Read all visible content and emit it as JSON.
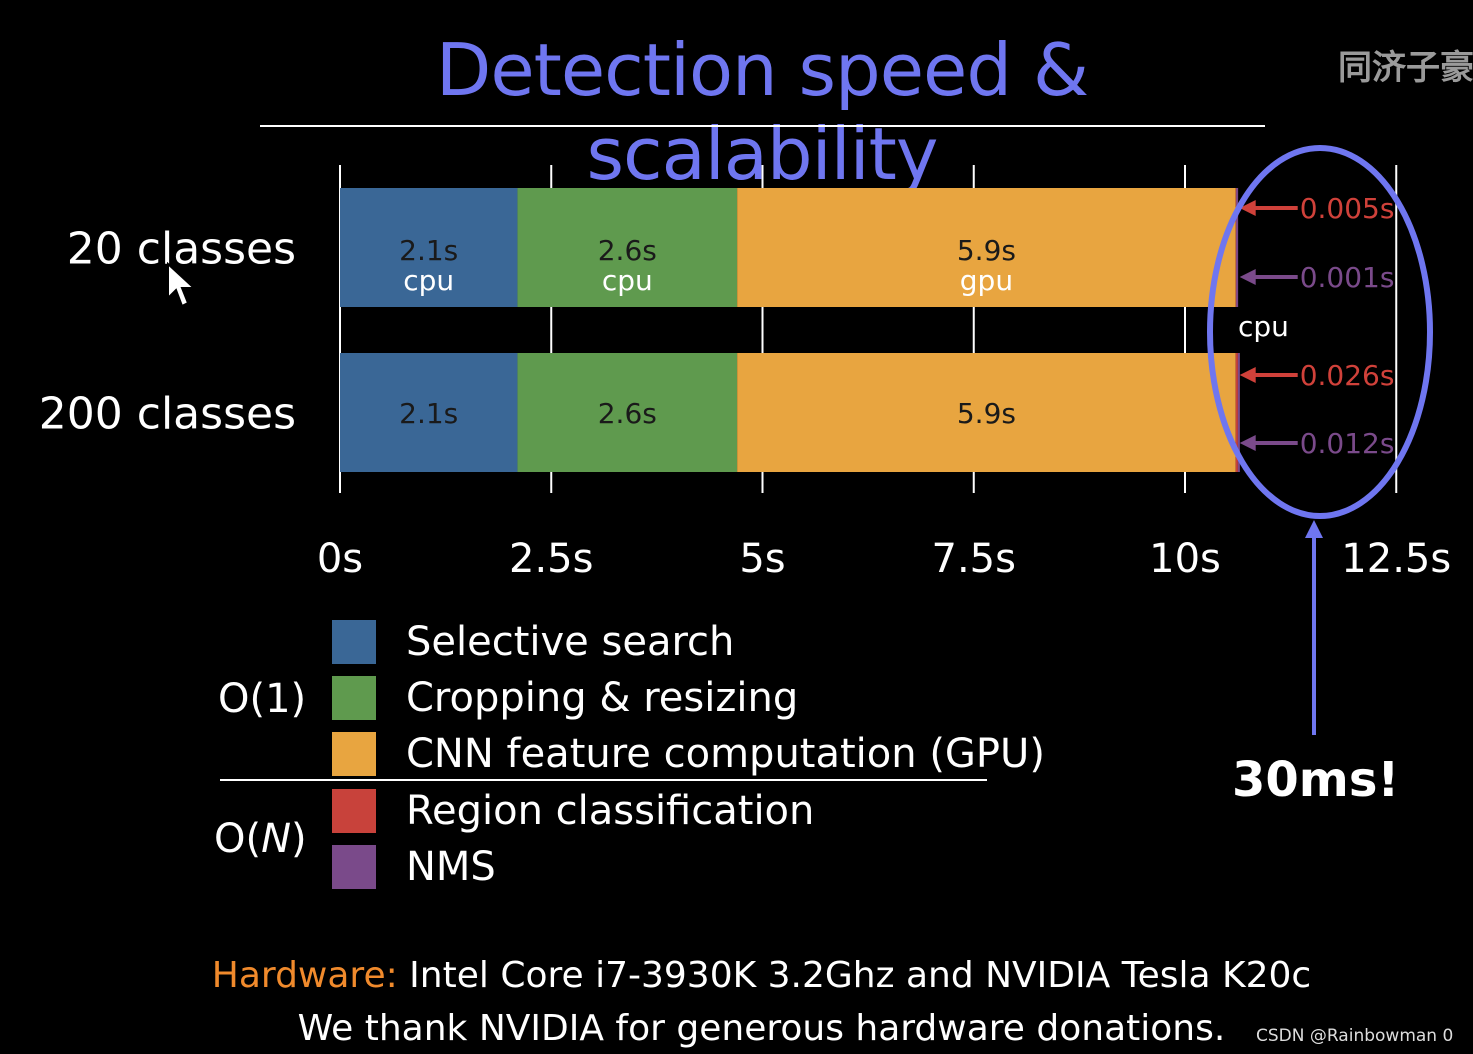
{
  "slide": {
    "title": "Detection speed & scalability",
    "watermark": "同济子豪",
    "highlight": "30ms!",
    "footer_hardware_label": "Hardware:",
    "footer_hardware_text": " Intel Core i7-3930K 3.2Ghz and NVIDIA Tesla K20c",
    "footer_thanks": "We thank NVIDIA for generous hardware donations.",
    "credit": "CSDN @Rainbowman 0"
  },
  "legend": {
    "groups": [
      {
        "label": "O(1)",
        "items": [
          "Selective search",
          "Cropping & resizing",
          "CNN feature computation (GPU)"
        ]
      },
      {
        "label_prefix": "O(",
        "label_italic": "N",
        "label_suffix": ")",
        "items": [
          "Region classification",
          "NMS"
        ]
      }
    ]
  },
  "chart_data": {
    "type": "bar",
    "orientation": "horizontal",
    "stacked": true,
    "title": "Detection speed & scalability",
    "xlabel": "",
    "ylabel": "",
    "xlim": [
      0,
      12.5
    ],
    "x_ticks": [
      0,
      2.5,
      5,
      7.5,
      10,
      12.5
    ],
    "x_tick_labels": [
      "0s",
      "2.5s",
      "5s",
      "7.5s",
      "10s",
      "12.5s"
    ],
    "categories": [
      "20 classes",
      "200 classes"
    ],
    "series": [
      {
        "name": "Selective search",
        "color": "#3a6796",
        "values": [
          2.1,
          2.1
        ],
        "labels": [
          "2.1s",
          "2.1s"
        ],
        "sublabels": [
          "cpu",
          ""
        ]
      },
      {
        "name": "Cropping & resizing",
        "color": "#5f9a4e",
        "values": [
          2.6,
          2.6
        ],
        "labels": [
          "2.6s",
          "2.6s"
        ],
        "sublabels": [
          "cpu",
          ""
        ]
      },
      {
        "name": "CNN feature computation (GPU)",
        "color": "#e8a540",
        "values": [
          5.9,
          5.9
        ],
        "labels": [
          "5.9s",
          "5.9s"
        ],
        "sublabels": [
          "gpu",
          ""
        ]
      },
      {
        "name": "Region classification",
        "color": "#c8423b",
        "values": [
          0.005,
          0.026
        ],
        "labels": [
          "0.005s",
          "0.026s"
        ]
      },
      {
        "name": "NMS",
        "color": "#7a4a8a",
        "values": [
          0.001,
          0.012
        ],
        "labels": [
          "0.001s",
          "0.012s"
        ]
      }
    ],
    "annotations": {
      "cpu_label": "cpu",
      "ellipse_note": "30ms!"
    }
  }
}
